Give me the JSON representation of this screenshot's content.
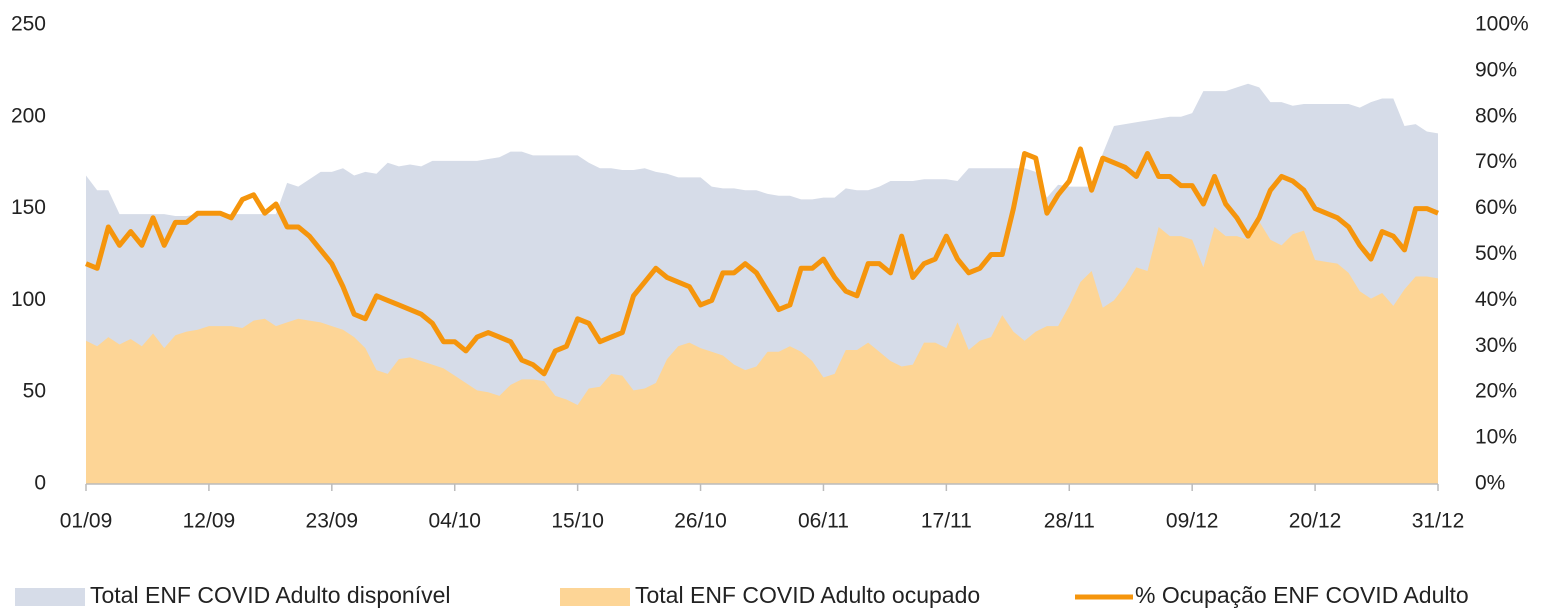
{
  "chart_data": {
    "type": "area-line",
    "categories": [
      "01/09",
      null,
      null,
      null,
      null,
      null,
      null,
      null,
      null,
      null,
      null,
      "12/09",
      null,
      null,
      null,
      null,
      null,
      null,
      null,
      null,
      null,
      null,
      "23/09",
      null,
      null,
      null,
      null,
      null,
      null,
      null,
      null,
      null,
      null,
      "04/10",
      null,
      null,
      null,
      null,
      null,
      null,
      null,
      null,
      null,
      null,
      "15/10",
      null,
      null,
      null,
      null,
      null,
      null,
      null,
      null,
      null,
      null,
      "26/10",
      null,
      null,
      null,
      null,
      null,
      null,
      null,
      null,
      null,
      null,
      "06/11",
      null,
      null,
      null,
      null,
      null,
      null,
      null,
      null,
      null,
      null,
      "17/11",
      null,
      null,
      null,
      null,
      null,
      null,
      null,
      null,
      null,
      null,
      "28/11",
      null,
      null,
      null,
      null,
      null,
      null,
      null,
      null,
      null,
      null,
      "09/12",
      null,
      null,
      null,
      null,
      null,
      null,
      null,
      null,
      null,
      null,
      "20/12",
      null,
      null,
      null,
      null,
      null,
      null,
      null,
      null,
      null,
      null,
      "31/12"
    ],
    "series": [
      {
        "name": "Total ENF COVID Adulto disponível",
        "color": "#d6dce8",
        "values": [
          168,
          160,
          160,
          147,
          147,
          147,
          147,
          147,
          146,
          146,
          147,
          147,
          147,
          147,
          147,
          147,
          147,
          147,
          164,
          162,
          166,
          170,
          170,
          172,
          168,
          170,
          169,
          175,
          173,
          174,
          173,
          176,
          176,
          176,
          176,
          176,
          177,
          178,
          181,
          181,
          179,
          179,
          179,
          179,
          179,
          175,
          172,
          172,
          171,
          171,
          172,
          170,
          169,
          167,
          167,
          167,
          162,
          161,
          161,
          160,
          160,
          158,
          157,
          157,
          155,
          155,
          156,
          156,
          161,
          160,
          160,
          162,
          165,
          165,
          165,
          166,
          166,
          166,
          165,
          172,
          172,
          172,
          172,
          172,
          172,
          170,
          156,
          163,
          162,
          162,
          162,
          180,
          195,
          196,
          197,
          198,
          199,
          200,
          200,
          202,
          214,
          214,
          214,
          216,
          218,
          216,
          208,
          208,
          206,
          207,
          207,
          207,
          207,
          207,
          205,
          208,
          210,
          210,
          195,
          196,
          192,
          191
        ]
      },
      {
        "name": "Total ENF COVID Adulto ocupado",
        "color": "#fdd596",
        "values": [
          78,
          75,
          80,
          76,
          79,
          75,
          82,
          74,
          81,
          83,
          84,
          86,
          86,
          86,
          85,
          89,
          90,
          86,
          88,
          90,
          89,
          88,
          86,
          84,
          80,
          74,
          62,
          60,
          68,
          69,
          67,
          65,
          63,
          59,
          55,
          51,
          50,
          48,
          54,
          57,
          57,
          56,
          48,
          46,
          43,
          52,
          53,
          60,
          59,
          51,
          52,
          55,
          68,
          75,
          77,
          74,
          72,
          70,
          65,
          62,
          64,
          72,
          72,
          75,
          72,
          67,
          58,
          60,
          73,
          73,
          77,
          72,
          67,
          64,
          65,
          77,
          77,
          74,
          88,
          73,
          78,
          80,
          92,
          83,
          78,
          83,
          86,
          86,
          97,
          110,
          116,
          96,
          100,
          108,
          118,
          116,
          140,
          135,
          135,
          133,
          118,
          140,
          135,
          135,
          133,
          143,
          133,
          130,
          136,
          138,
          122,
          121,
          120,
          115,
          105,
          101,
          104,
          97,
          106,
          113,
          113,
          112
        ]
      },
      {
        "name": "% Ocupação ENF COVID Adulto",
        "color": "#f5950c",
        "axis": "y2",
        "values": [
          48,
          47,
          56,
          52,
          55,
          52,
          58,
          52,
          57,
          57,
          59,
          59,
          59,
          58,
          62,
          63,
          59,
          61,
          56,
          56,
          54,
          51,
          48,
          43,
          37,
          36,
          41,
          40,
          39,
          38,
          37,
          35,
          31,
          31,
          29,
          32,
          33,
          32,
          31,
          27,
          26,
          24,
          29,
          30,
          36,
          35,
          31,
          32,
          33,
          41,
          44,
          47,
          45,
          44,
          43,
          39,
          40,
          46,
          46,
          48,
          46,
          42,
          38,
          39,
          47,
          47,
          49,
          45,
          42,
          41,
          48,
          48,
          46,
          54,
          45,
          48,
          49,
          54,
          49,
          46,
          47,
          50,
          50,
          60,
          72,
          71,
          59,
          63,
          66,
          73,
          64,
          71,
          70,
          69,
          67,
          72,
          67,
          67,
          65,
          65,
          61,
          67,
          61,
          58,
          54,
          58,
          64,
          67,
          66,
          64,
          60,
          59,
          58,
          56,
          52,
          49,
          55,
          54,
          51,
          60,
          60,
          59
        ]
      }
    ],
    "ylim": [
      0,
      250
    ],
    "yticks": [
      0,
      50,
      100,
      150,
      200,
      250
    ],
    "y2lim": [
      0,
      100
    ],
    "y2ticks": [
      {
        "value": 0,
        "label": "0%"
      },
      {
        "value": 10,
        "label": "10%"
      },
      {
        "value": 20,
        "label": "20%"
      },
      {
        "value": 30,
        "label": "30%"
      },
      {
        "value": 40,
        "label": "40%"
      },
      {
        "value": 50,
        "label": "50%"
      },
      {
        "value": 60,
        "label": "60%"
      },
      {
        "value": 70,
        "label": "70%"
      },
      {
        "value": 80,
        "label": "80%"
      },
      {
        "value": 90,
        "label": "90%"
      },
      {
        "value": 100,
        "label": "100%"
      }
    ],
    "legend": "bottom"
  }
}
